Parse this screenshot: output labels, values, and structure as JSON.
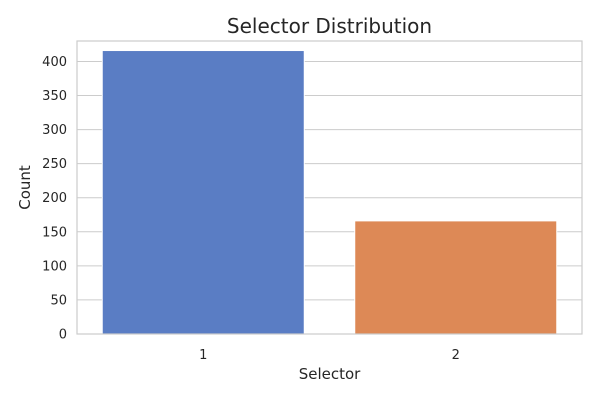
{
  "chart_data": {
    "type": "bar",
    "title": "Selector Distribution",
    "xlabel": "Selector",
    "ylabel": "Count",
    "categories": [
      "1",
      "2"
    ],
    "values": [
      416,
      166
    ],
    "colors": [
      "#5a7dc4",
      "#dd8956"
    ],
    "ylim": [
      0,
      430
    ],
    "yticks": [
      0,
      50,
      100,
      150,
      200,
      250,
      300,
      350,
      400
    ],
    "grid": true,
    "legend": "none"
  }
}
